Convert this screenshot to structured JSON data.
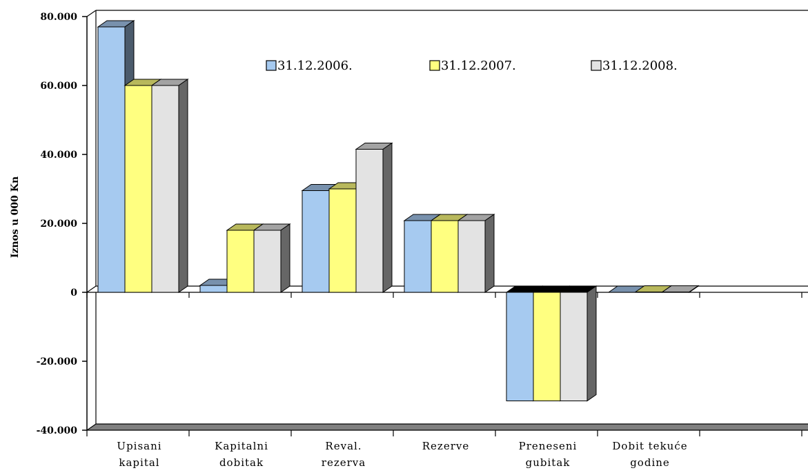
{
  "chart_data": {
    "type": "bar",
    "title": "",
    "xlabel": "",
    "ylabel": "Iznos u 000 Kn",
    "ylim": [
      -40000,
      80000
    ],
    "yticks": [
      80000,
      60000,
      40000,
      20000,
      0,
      -20000,
      -40000
    ],
    "ytick_labels": [
      "80.000",
      "60.000",
      "40.000",
      "20.000",
      "0",
      "-20.000",
      "-40.000"
    ],
    "categories": [
      [
        "Upisani",
        "kapital"
      ],
      [
        "Kapitalni",
        "dobitak"
      ],
      [
        "Reval.",
        "rezerva"
      ],
      [
        "Rezerve"
      ],
      [
        "Preneseni",
        "gubitak"
      ],
      [
        "Dobit tekuće",
        "godine"
      ]
    ],
    "series": [
      {
        "name": "31.12.2006.",
        "color": "#a6caf0",
        "values": [
          77000,
          2000,
          29500,
          20800,
          -31500,
          0
        ]
      },
      {
        "name": "31.12.2007.",
        "color": "#ffff80",
        "values": [
          60000,
          18000,
          30000,
          20800,
          -31500,
          100
        ]
      },
      {
        "name": "31.12.2008.",
        "color": "#e3e3e3",
        "values": [
          60000,
          18000,
          41500,
          20800,
          -31500,
          100
        ]
      }
    ],
    "legend_position": "top-right",
    "grid": false
  }
}
